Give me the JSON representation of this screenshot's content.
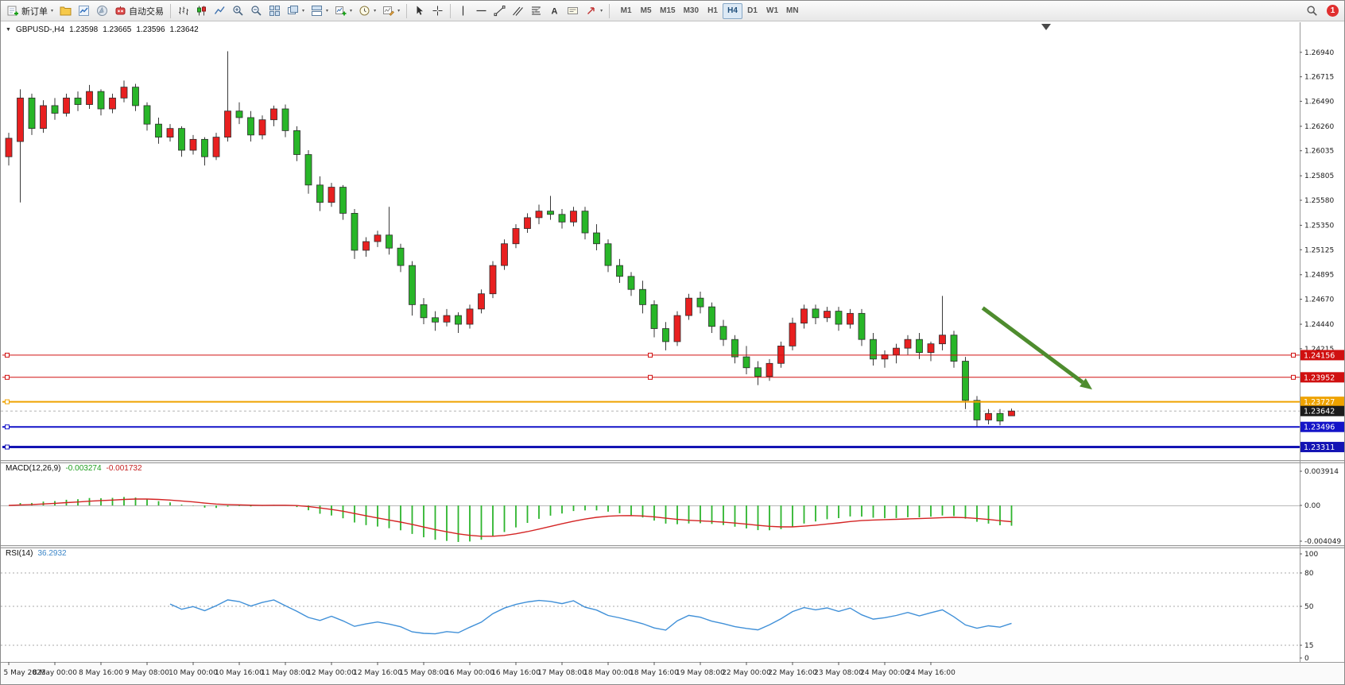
{
  "toolbar": {
    "new_order_label": "新订单",
    "auto_trading_label": "自动交易",
    "timeframes": [
      "M1",
      "M5",
      "M15",
      "M30",
      "H1",
      "H4",
      "D1",
      "W1",
      "MN"
    ],
    "active_timeframe": "H4",
    "notification_count": "1"
  },
  "symbol_info": {
    "symbol_period": "GBPUSD-,H4",
    "open": "1.23598",
    "high": "1.23665",
    "low": "1.23596",
    "close": "1.23642"
  },
  "macd": {
    "name": "MACD(12,26,9)",
    "value_main": "-0.003274",
    "value_signal": "-0.001732",
    "axis": [
      "0.003914",
      "0.00",
      "-0.004049"
    ],
    "histogram_color": "#2db42d",
    "signal_color": "#d42424"
  },
  "rsi": {
    "name": "RSI(14)",
    "value": "36.2932",
    "axis": [
      "100",
      "80",
      "50",
      "15",
      "0"
    ],
    "levels": [
      80,
      50,
      15
    ],
    "line_color": "#4090d8"
  },
  "chart_data": {
    "type": "candlestick",
    "symbol": "GBPUSD-",
    "timeframe": "H4",
    "price_range": {
      "top": 1.2718,
      "bottom": 1.2322
    },
    "price_axis_ticks": [
      "1.26940",
      "1.26715",
      "1.26490",
      "1.26260",
      "1.26035",
      "1.25805",
      "1.25580",
      "1.25350",
      "1.25125",
      "1.24895",
      "1.24670",
      "1.24440",
      "1.24215"
    ],
    "time_labels": [
      "5 May 2023",
      "8 May 00:00",
      "8 May 16:00",
      "9 May 08:00",
      "10 May 00:00",
      "10 May 16:00",
      "11 May 08:00",
      "12 May 00:00",
      "12 May 16:00",
      "15 May 08:00",
      "16 May 00:00",
      "16 May 16:00",
      "17 May 08:00",
      "18 May 00:00",
      "18 May 16:00",
      "19 May 08:00",
      "22 May 00:00",
      "22 May 16:00",
      "23 May 08:00",
      "24 May 00:00",
      "24 May 16:00"
    ],
    "time_label_step": 4,
    "colors": {
      "bull": "#e82020",
      "bear": "#28b628",
      "outline": "#2c2c2c"
    },
    "levels": [
      {
        "value": 1.24156,
        "label": "1.24156",
        "color": "#d01010",
        "width": 1,
        "handles": "selected"
      },
      {
        "value": 1.23952,
        "label": "1.23952",
        "color": "#d01010",
        "width": 1,
        "handles": "selected"
      },
      {
        "value": 1.23727,
        "label": "1.23727",
        "color": "#efa300",
        "width": 2,
        "handles": "left"
      },
      {
        "value": 1.23496,
        "label": "1.23496",
        "color": "#1414c8",
        "width": 2,
        "handles": "left"
      },
      {
        "value": 1.23311,
        "label": "1.23311",
        "color": "#1414b4",
        "width": 3,
        "handles": "left"
      }
    ],
    "bid_price": {
      "value": 1.23642,
      "label": "1.23642",
      "color": "#1c1c1c"
    },
    "trend_arrow": {
      "from_index": 84.5,
      "from_price": 1.2459,
      "to_index": 94,
      "to_price": 1.2384,
      "color": "#4e8c2e"
    },
    "candles_ohlc": [
      [
        1.2598,
        1.262,
        1.259,
        1.2615
      ],
      [
        1.2612,
        1.266,
        1.2556,
        1.2652
      ],
      [
        1.2652,
        1.2656,
        1.2618,
        1.2624
      ],
      [
        1.2624,
        1.265,
        1.262,
        1.2645
      ],
      [
        1.2645,
        1.2652,
        1.2632,
        1.2638
      ],
      [
        1.2638,
        1.2656,
        1.2635,
        1.2652
      ],
      [
        1.2652,
        1.2658,
        1.264,
        1.2646
      ],
      [
        1.2646,
        1.2664,
        1.2642,
        1.2658
      ],
      [
        1.2658,
        1.266,
        1.2636,
        1.2642
      ],
      [
        1.2642,
        1.2656,
        1.2638,
        1.2652
      ],
      [
        1.2652,
        1.2668,
        1.2648,
        1.2662
      ],
      [
        1.2662,
        1.2665,
        1.264,
        1.2645
      ],
      [
        1.2645,
        1.2648,
        1.2622,
        1.2628
      ],
      [
        1.2628,
        1.2634,
        1.261,
        1.2616
      ],
      [
        1.2616,
        1.2628,
        1.2612,
        1.2624
      ],
      [
        1.2624,
        1.2626,
        1.2598,
        1.2604
      ],
      [
        1.2604,
        1.2618,
        1.26,
        1.2614
      ],
      [
        1.2614,
        1.2616,
        1.259,
        1.2598
      ],
      [
        1.2598,
        1.262,
        1.2595,
        1.2616
      ],
      [
        1.2616,
        1.2695,
        1.2612,
        1.264
      ],
      [
        1.264,
        1.2648,
        1.2628,
        1.2634
      ],
      [
        1.2634,
        1.264,
        1.2612,
        1.2618
      ],
      [
        1.2618,
        1.2636,
        1.2614,
        1.2632
      ],
      [
        1.2632,
        1.2645,
        1.2626,
        1.2642
      ],
      [
        1.2642,
        1.2646,
        1.2616,
        1.2622
      ],
      [
        1.2622,
        1.2626,
        1.2594,
        1.26
      ],
      [
        1.26,
        1.2604,
        1.2564,
        1.2572
      ],
      [
        1.2572,
        1.258,
        1.2548,
        1.2556
      ],
      [
        1.2556,
        1.2574,
        1.2552,
        1.257
      ],
      [
        1.257,
        1.2572,
        1.254,
        1.2546
      ],
      [
        1.2546,
        1.255,
        1.2504,
        1.2512
      ],
      [
        1.2512,
        1.2524,
        1.2506,
        1.252
      ],
      [
        1.252,
        1.253,
        1.2515,
        1.2526
      ],
      [
        1.2526,
        1.2552,
        1.2508,
        1.2514
      ],
      [
        1.2514,
        1.2518,
        1.2492,
        1.2498
      ],
      [
        1.2498,
        1.2502,
        1.2452,
        1.2462
      ],
      [
        1.2462,
        1.2468,
        1.2444,
        1.245
      ],
      [
        1.245,
        1.2456,
        1.2438,
        1.2446
      ],
      [
        1.2446,
        1.2458,
        1.2442,
        1.2452
      ],
      [
        1.2452,
        1.2455,
        1.2436,
        1.2444
      ],
      [
        1.2444,
        1.2462,
        1.244,
        1.2458
      ],
      [
        1.2458,
        1.2476,
        1.2454,
        1.2472
      ],
      [
        1.2472,
        1.2502,
        1.2468,
        1.2498
      ],
      [
        1.2498,
        1.2522,
        1.2494,
        1.2518
      ],
      [
        1.2518,
        1.2536,
        1.2514,
        1.2532
      ],
      [
        1.2532,
        1.2546,
        1.2528,
        1.2542
      ],
      [
        1.2542,
        1.2554,
        1.2536,
        1.2548
      ],
      [
        1.2548,
        1.2562,
        1.254,
        1.2545
      ],
      [
        1.2545,
        1.255,
        1.2532,
        1.2538
      ],
      [
        1.2538,
        1.2552,
        1.2534,
        1.2548
      ],
      [
        1.2548,
        1.2552,
        1.2522,
        1.2528
      ],
      [
        1.2528,
        1.2536,
        1.2512,
        1.2518
      ],
      [
        1.2518,
        1.2522,
        1.2492,
        1.2498
      ],
      [
        1.2498,
        1.2504,
        1.2482,
        1.2488
      ],
      [
        1.2488,
        1.2492,
        1.247,
        1.2476
      ],
      [
        1.2476,
        1.2484,
        1.2454,
        1.2462
      ],
      [
        1.2462,
        1.2466,
        1.2432,
        1.244
      ],
      [
        1.244,
        1.2446,
        1.242,
        1.2428
      ],
      [
        1.2428,
        1.2456,
        1.2424,
        1.2452
      ],
      [
        1.2452,
        1.2472,
        1.2448,
        1.2468
      ],
      [
        1.2468,
        1.2474,
        1.2454,
        1.246
      ],
      [
        1.246,
        1.2464,
        1.2436,
        1.2442
      ],
      [
        1.2442,
        1.2448,
        1.2424,
        1.243
      ],
      [
        1.243,
        1.2434,
        1.2408,
        1.2414
      ],
      [
        1.2414,
        1.2424,
        1.2398,
        1.2404
      ],
      [
        1.2404,
        1.241,
        1.2388,
        1.2396
      ],
      [
        1.2396,
        1.2412,
        1.2392,
        1.2408
      ],
      [
        1.2408,
        1.2428,
        1.2404,
        1.2424
      ],
      [
        1.2424,
        1.245,
        1.242,
        1.2445
      ],
      [
        1.2445,
        1.2462,
        1.244,
        1.2458
      ],
      [
        1.2458,
        1.2462,
        1.2444,
        1.245
      ],
      [
        1.245,
        1.246,
        1.2446,
        1.2456
      ],
      [
        1.2456,
        1.246,
        1.2438,
        1.2444
      ],
      [
        1.2444,
        1.2458,
        1.244,
        1.2454
      ],
      [
        1.2454,
        1.2458,
        1.2424,
        1.243
      ],
      [
        1.243,
        1.2436,
        1.2406,
        1.2412
      ],
      [
        1.2412,
        1.242,
        1.2404,
        1.2416
      ],
      [
        1.2416,
        1.2426,
        1.2408,
        1.2422
      ],
      [
        1.2422,
        1.2434,
        1.2416,
        1.243
      ],
      [
        1.243,
        1.2436,
        1.2412,
        1.2418
      ],
      [
        1.2418,
        1.2428,
        1.241,
        1.2426
      ],
      [
        1.2426,
        1.247,
        1.242,
        1.2434
      ],
      [
        1.2434,
        1.2438,
        1.2404,
        1.241
      ],
      [
        1.241,
        1.2414,
        1.2366,
        1.2374
      ],
      [
        1.2374,
        1.2378,
        1.235,
        1.2356
      ],
      [
        1.2356,
        1.2366,
        1.2352,
        1.2362
      ],
      [
        1.2362,
        1.2366,
        1.2351,
        1.2355
      ],
      [
        1.23598,
        1.23665,
        1.23596,
        1.23642
      ]
    ]
  }
}
